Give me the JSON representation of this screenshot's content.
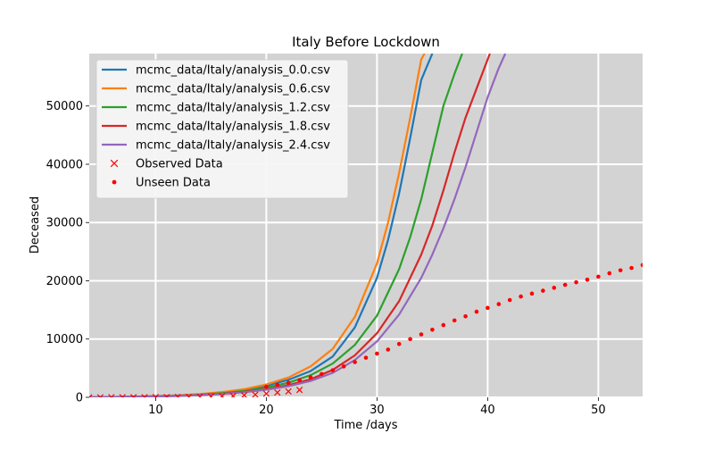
{
  "chart_data": {
    "type": "line",
    "title": "Italy Before Lockdown",
    "xlabel": "Time /days",
    "ylabel": "Deceased",
    "xlim": [
      4,
      54
    ],
    "ylim": [
      0,
      59000
    ],
    "grid": true,
    "background": "#d3d3d3",
    "legend_position": "top-left",
    "x_ticks": [
      10,
      20,
      30,
      40,
      50
    ],
    "y_ticks": [
      0,
      10000,
      20000,
      30000,
      40000,
      50000
    ],
    "series": [
      {
        "name": "mcmc_data/Italy/analysis_0.0.csv",
        "color": "#1f77b4",
        "x": [
          4,
          6,
          8,
          10,
          12,
          14,
          16,
          18,
          20,
          22,
          24,
          26,
          28,
          30,
          31,
          32,
          33,
          34,
          35
        ],
        "y": [
          0,
          60,
          120,
          200,
          330,
          520,
          850,
          1300,
          2000,
          3000,
          4500,
          7000,
          12000,
          20500,
          27000,
          35000,
          44500,
          54500,
          59000
        ]
      },
      {
        "name": "mcmc_data/Italy/analysis_0.6.csv",
        "color": "#ff7f0e",
        "x": [
          4,
          6,
          8,
          10,
          12,
          14,
          16,
          18,
          20,
          22,
          24,
          26,
          28,
          30,
          31,
          32,
          33,
          34,
          34.3
        ],
        "y": [
          0,
          60,
          120,
          200,
          340,
          560,
          900,
          1400,
          2200,
          3400,
          5300,
          8300,
          13800,
          23000,
          30000,
          38500,
          48000,
          58000,
          59000
        ]
      },
      {
        "name": "mcmc_data/Italy/analysis_1.2.csv",
        "color": "#2ca02c",
        "x": [
          4,
          6,
          8,
          10,
          12,
          14,
          16,
          18,
          20,
          22,
          24,
          26,
          28,
          30,
          32,
          33,
          34,
          35,
          36,
          37,
          37.7
        ],
        "y": [
          0,
          50,
          100,
          170,
          280,
          450,
          700,
          1100,
          1700,
          2500,
          3800,
          5800,
          9000,
          14000,
          22000,
          27500,
          34000,
          42000,
          50000,
          55500,
          59000
        ]
      },
      {
        "name": "mcmc_data/Italy/analysis_1.8.csv",
        "color": "#d62728",
        "x": [
          4,
          6,
          8,
          10,
          12,
          14,
          16,
          18,
          20,
          22,
          24,
          26,
          28,
          30,
          32,
          34,
          35,
          36,
          37,
          38,
          39,
          40,
          40.2
        ],
        "y": [
          0,
          40,
          90,
          150,
          250,
          400,
          620,
          950,
          1400,
          2100,
          3100,
          4700,
          7200,
          11000,
          16500,
          24500,
          29500,
          35500,
          42000,
          48000,
          53000,
          58000,
          59000
        ]
      },
      {
        "name": "mcmc_data/Italy/analysis_2.4.csv",
        "color": "#9467bd",
        "x": [
          4,
          6,
          8,
          10,
          12,
          14,
          16,
          18,
          20,
          22,
          24,
          26,
          28,
          30,
          32,
          34,
          35,
          36,
          37,
          38,
          39,
          40,
          41,
          41.6
        ],
        "y": [
          0,
          40,
          80,
          140,
          230,
          370,
          570,
          870,
          1300,
          1900,
          2800,
          4200,
          6400,
          9600,
          14200,
          20500,
          24500,
          29000,
          34000,
          39500,
          45500,
          51500,
          56500,
          59000
        ]
      }
    ],
    "observed": {
      "name": "Observed Data",
      "color": "#ff0000",
      "marker": "x",
      "x": [
        4,
        5,
        6,
        7,
        8,
        9,
        10,
        11,
        12,
        13,
        14,
        15,
        16,
        17,
        18,
        19,
        20,
        21,
        22,
        23
      ],
      "y": [
        3,
        7,
        10,
        12,
        17,
        21,
        29,
        34,
        52,
        79,
        107,
        148,
        197,
        233,
        366,
        463,
        631,
        827,
        1016,
        1266
      ]
    },
    "unseen": {
      "name": "Unseen Data",
      "color": "#ff0000",
      "marker": "dot",
      "x": [
        20,
        21,
        22,
        23,
        24,
        25,
        26,
        27,
        28,
        29,
        30,
        31,
        32,
        33,
        34,
        35,
        36,
        37,
        38,
        39,
        40,
        41,
        42,
        43,
        44,
        45,
        46,
        47,
        48,
        49,
        50,
        51,
        52,
        53,
        54
      ],
      "y": [
        1800,
        2150,
        2500,
        2950,
        3450,
        4000,
        4650,
        5300,
        6050,
        6800,
        7500,
        8200,
        9150,
        10000,
        10800,
        11600,
        12400,
        13200,
        13900,
        14700,
        15350,
        16000,
        16700,
        17300,
        17800,
        18300,
        18800,
        19300,
        19750,
        20200,
        20700,
        21300,
        21800,
        22200,
        22700
      ]
    }
  }
}
